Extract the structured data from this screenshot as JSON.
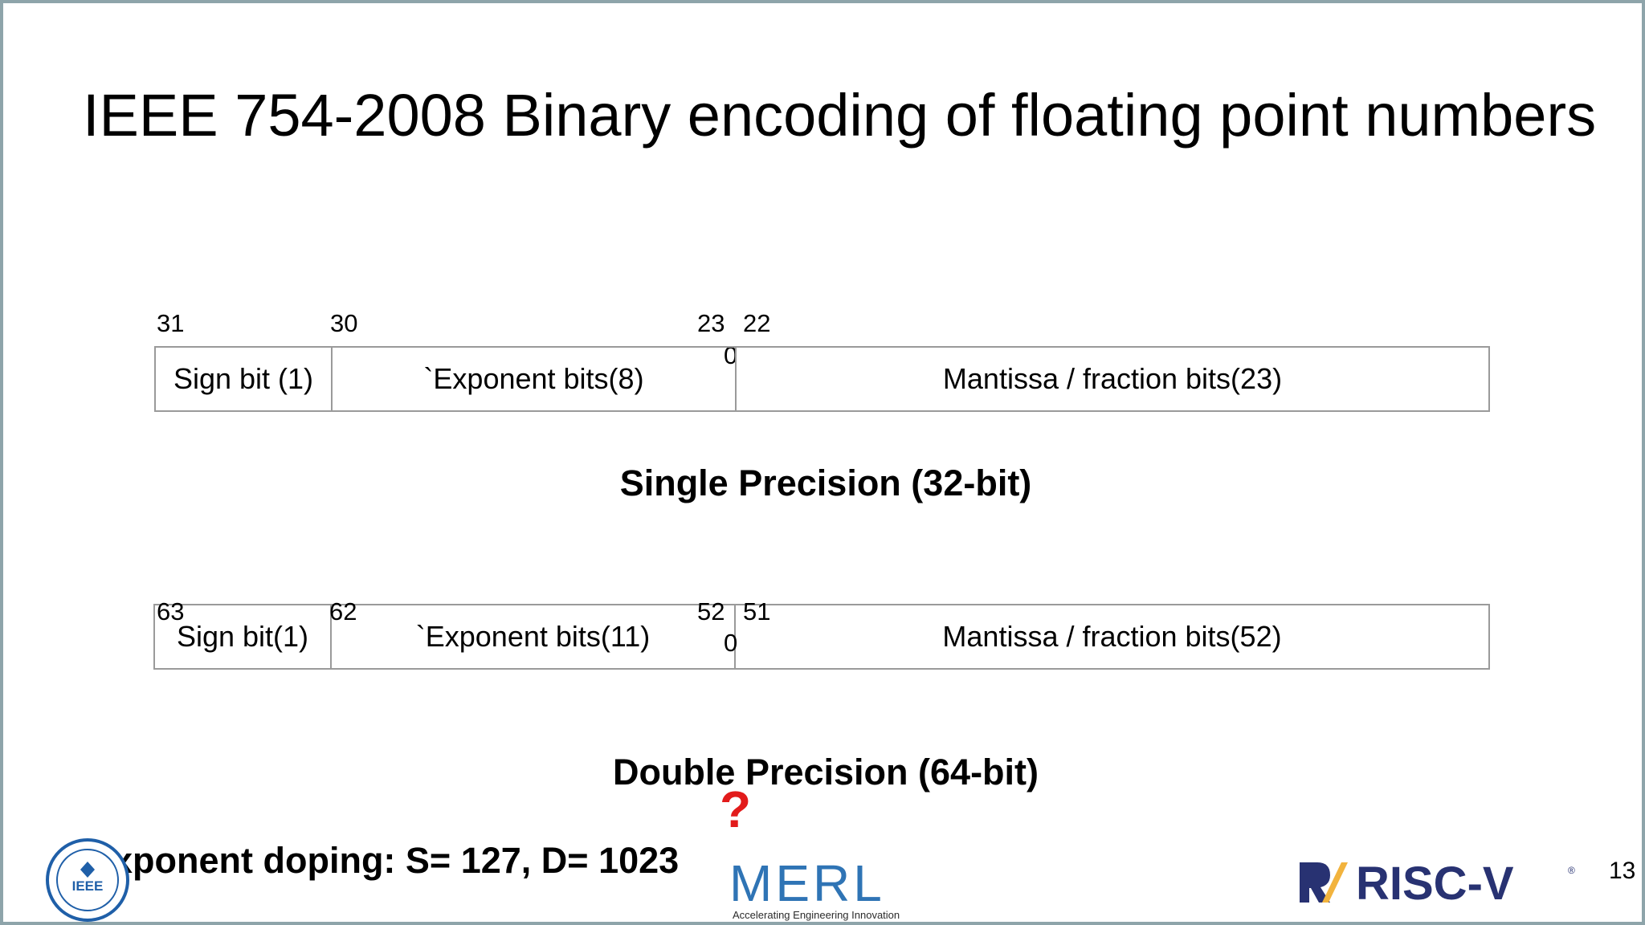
{
  "slide": {
    "title": "IEEE 754-2008 Binary encoding of floating point numbers",
    "page_number": "13",
    "question_mark": "?",
    "footer_note": "xponent doping: S= 127, D= 1023"
  },
  "single": {
    "bit_31": "31",
    "bit_30": "30",
    "bit_23": "23",
    "bit_22": "22",
    "bit_0": "0",
    "sign_label": "Sign bit (1)",
    "exponent_label": "`Exponent bits(8)",
    "mantissa_label": "Mantissa / fraction bits(23)",
    "caption": "Single Precision (32-bit)"
  },
  "double": {
    "bit_63": "63",
    "bit_62": "62",
    "bit_52": "52",
    "bit_51": "51",
    "bit_0": "0",
    "sign_label": "Sign bit(1)",
    "exponent_label": "`Exponent bits(11)",
    "mantissa_label": "Mantissa / fraction bits(52)",
    "caption": "Double Precision (64-bit)"
  },
  "logos": {
    "ieee_text": "IEEE",
    "merl_text": "MERL",
    "merl_tagline": "Accelerating Engineering Innovation",
    "riscv_text": "RISC-V",
    "riscv_mark": "®"
  },
  "colors": {
    "frame": "#8ea4aa",
    "question": "#e21b1b",
    "merl_blue": "#2f74b5",
    "riscv_navy": "#283272",
    "riscv_gold": "#f2b33d",
    "ieee_blue": "#1f5fa8"
  }
}
